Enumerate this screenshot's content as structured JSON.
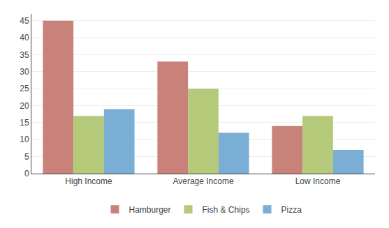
{
  "chart_data": {
    "type": "bar",
    "categories": [
      "High Income",
      "Average Income",
      "Low Income"
    ],
    "series": [
      {
        "name": "Hamburger",
        "color": "#c9827a",
        "values": [
          45,
          33,
          14
        ]
      },
      {
        "name": "Fish & Chips",
        "color": "#b5c97a",
        "values": [
          17,
          25,
          17
        ]
      },
      {
        "name": "Pizza",
        "color": "#7aaed4",
        "values": [
          19,
          12,
          7
        ]
      }
    ],
    "ylim": [
      0,
      47
    ],
    "yticks": [
      0,
      5,
      10,
      15,
      20,
      25,
      30,
      35,
      40,
      45
    ],
    "grid": true,
    "legend": "bottom"
  }
}
